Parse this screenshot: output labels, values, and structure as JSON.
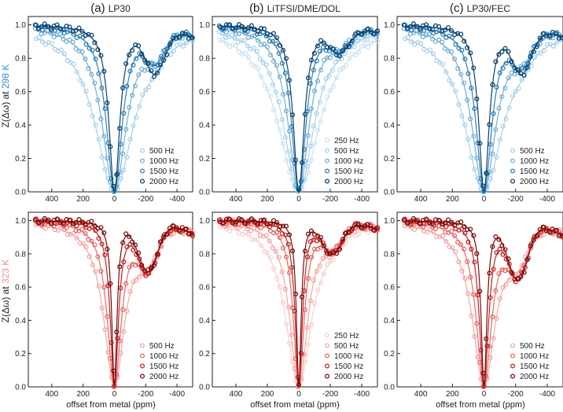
{
  "figure": {
    "xlabel": "offset from metal (ppm)",
    "ylabel_row1": {
      "prefix": "Z(Δω) at ",
      "temp": "298 K"
    },
    "ylabel_row2": {
      "prefix": "Z(Δω) at ",
      "temp": "323 K"
    }
  },
  "colors": {
    "blue": [
      "#a9d2ea",
      "#73afd6",
      "#2f7eb5",
      "#08406f"
    ],
    "blue5": [
      "#cce3f2",
      "#a9d2ea",
      "#73afd6",
      "#2f7eb5",
      "#08406f"
    ],
    "red": [
      "#f3a6a3",
      "#e56a66",
      "#c52222",
      "#7a0b0b"
    ],
    "red5": [
      "#f9d0ce",
      "#f3a6a3",
      "#e56a66",
      "#c52222",
      "#7a0b0b"
    ],
    "label_blue": "#2f8fd1",
    "label_red": "#f08c88"
  },
  "chart_data": [
    {
      "id": "a-298",
      "type": "scatter",
      "panel_label": "(a)",
      "title": "LP30",
      "row": "298 K",
      "xlim": [
        550,
        -500
      ],
      "ylim": [
        0,
        1.05
      ],
      "xticks": [
        400,
        200,
        0,
        -200,
        -400
      ],
      "yticks": [
        0.0,
        0.2,
        0.4,
        0.6,
        0.8,
        1.0
      ],
      "series": [
        {
          "name": "500 Hz"
        },
        {
          "name": "1000 Hz"
        },
        {
          "name": "1500 Hz"
        },
        {
          "name": "2000 Hz"
        }
      ]
    },
    {
      "id": "b-298",
      "type": "scatter",
      "panel_label": "(b)",
      "title": "LiTFSI/DME/DOL",
      "row": "298 K",
      "xlim": [
        550,
        -500
      ],
      "ylim": [
        0,
        1.05
      ],
      "xticks": [
        400,
        200,
        0,
        -200,
        -400
      ],
      "yticks": [
        0.0,
        0.2,
        0.4,
        0.6,
        0.8,
        1.0
      ],
      "series": [
        {
          "name": "250 Hz"
        },
        {
          "name": "500 Hz"
        },
        {
          "name": "1000 Hz"
        },
        {
          "name": "1500 Hz"
        },
        {
          "name": "2000 Hz"
        }
      ]
    },
    {
      "id": "c-298",
      "type": "scatter",
      "panel_label": "(c)",
      "title": "LP30/FEC",
      "row": "298 K",
      "xlim": [
        550,
        -500
      ],
      "ylim": [
        0,
        1.05
      ],
      "xticks": [
        400,
        200,
        0,
        -200,
        -400
      ],
      "yticks": [
        0.0,
        0.2,
        0.4,
        0.6,
        0.8,
        1.0
      ],
      "series": [
        {
          "name": "500 Hz"
        },
        {
          "name": "1000 Hz"
        },
        {
          "name": "1500 Hz"
        },
        {
          "name": "2000 Hz"
        }
      ]
    },
    {
      "id": "a-323",
      "type": "scatter",
      "row": "323 K",
      "xlim": [
        550,
        -500
      ],
      "ylim": [
        0,
        1.05
      ],
      "xticks": [
        400,
        200,
        0,
        -200,
        -400
      ],
      "yticks": [
        0.0,
        0.2,
        0.4,
        0.6,
        0.8,
        1.0
      ],
      "series": [
        {
          "name": "500 Hz"
        },
        {
          "name": "1000 Hz"
        },
        {
          "name": "1500 Hz"
        },
        {
          "name": "2000 Hz"
        }
      ]
    },
    {
      "id": "b-323",
      "type": "scatter",
      "row": "323 K",
      "xlim": [
        550,
        -500
      ],
      "ylim": [
        0,
        1.05
      ],
      "xticks": [
        400,
        200,
        0,
        -200,
        -400
      ],
      "yticks": [
        0.0,
        0.2,
        0.4,
        0.6,
        0.8,
        1.0
      ],
      "series": [
        {
          "name": "250 Hz"
        },
        {
          "name": "500 Hz"
        },
        {
          "name": "1000 Hz"
        },
        {
          "name": "1500 Hz"
        },
        {
          "name": "2000 Hz"
        }
      ]
    },
    {
      "id": "c-323",
      "type": "scatter",
      "row": "323 K",
      "xlim": [
        550,
        -500
      ],
      "ylim": [
        0,
        1.05
      ],
      "xticks": [
        400,
        200,
        0,
        -200,
        -400
      ],
      "yticks": [
        0.0,
        0.2,
        0.4,
        0.6,
        0.8,
        1.0
      ],
      "series": [
        {
          "name": "500 Hz"
        },
        {
          "name": "1000 Hz"
        },
        {
          "name": "1500 Hz"
        },
        {
          "name": "2000 Hz"
        }
      ]
    }
  ]
}
